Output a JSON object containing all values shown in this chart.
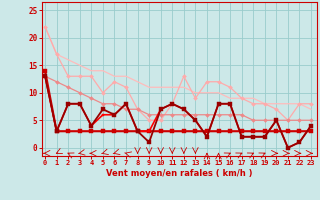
{
  "title": "",
  "xlabel": "Vent moyen/en rafales ( km/h )",
  "ylabel": "",
  "bg_color": "#cce8e8",
  "grid_color": "#99cccc",
  "x_ticks": [
    0,
    1,
    2,
    3,
    4,
    5,
    6,
    7,
    8,
    9,
    10,
    11,
    12,
    13,
    14,
    15,
    16,
    17,
    18,
    19,
    20,
    21,
    22,
    23
  ],
  "y_ticks": [
    0,
    5,
    10,
    15,
    20,
    25
  ],
  "xlim": [
    -0.3,
    23.5
  ],
  "ylim": [
    -1.5,
    26.5
  ],
  "lines": [
    {
      "x": [
        0,
        1,
        2,
        3,
        4,
        5,
        6,
        7,
        8,
        9,
        10,
        11,
        12,
        13,
        14,
        15,
        16,
        17,
        18,
        19,
        20,
        21,
        22,
        23
      ],
      "y": [
        22,
        17,
        16,
        15,
        14,
        14,
        13,
        13,
        12,
        11,
        11,
        11,
        11,
        10,
        10,
        10,
        9,
        9,
        9,
        8,
        8,
        8,
        8,
        7
      ],
      "color": "#ffbbbb",
      "lw": 0.9,
      "marker": null,
      "ms": 0
    },
    {
      "x": [
        0,
        1,
        2,
        3,
        4,
        5,
        6,
        7,
        8,
        9,
        10,
        11,
        12,
        13,
        14,
        15,
        16,
        17,
        18,
        19,
        20,
        21,
        22,
        23
      ],
      "y": [
        22,
        17,
        13,
        13,
        13,
        10,
        12,
        11,
        7,
        5,
        5,
        8,
        13,
        9,
        12,
        12,
        11,
        9,
        8,
        8,
        7,
        5,
        8,
        8
      ],
      "color": "#ffaaaa",
      "lw": 0.9,
      "marker": "D",
      "ms": 2.0
    },
    {
      "x": [
        0,
        1,
        2,
        3,
        4,
        5,
        6,
        7,
        8,
        9,
        10,
        11,
        12,
        13,
        14,
        15,
        16,
        17,
        18,
        19,
        20,
        21,
        22,
        23
      ],
      "y": [
        13,
        12,
        11,
        10,
        9,
        8,
        8,
        7,
        7,
        6,
        6,
        6,
        6,
        6,
        6,
        6,
        6,
        6,
        5,
        5,
        5,
        5,
        5,
        5
      ],
      "color": "#ee8888",
      "lw": 0.9,
      "marker": "D",
      "ms": 2.0
    },
    {
      "x": [
        0,
        1,
        2,
        3,
        4,
        5,
        6,
        7,
        8,
        9,
        10,
        11,
        12,
        13,
        14,
        15,
        16,
        17,
        18,
        19,
        20,
        21,
        22,
        23
      ],
      "y": [
        13,
        3,
        3,
        3,
        3,
        3,
        3,
        3,
        3,
        3,
        3,
        3,
        3,
        3,
        3,
        3,
        3,
        3,
        3,
        3,
        3,
        3,
        3,
        3
      ],
      "color": "#dd6666",
      "lw": 1.0,
      "marker": "s",
      "ms": 2.0
    },
    {
      "x": [
        0,
        1,
        2,
        3,
        4,
        5,
        6,
        7,
        8,
        9,
        10,
        11,
        12,
        13,
        14,
        15,
        16,
        17,
        18,
        19,
        20,
        21,
        22,
        23
      ],
      "y": [
        14,
        3,
        3,
        3,
        3,
        3,
        3,
        3,
        3,
        3,
        3,
        3,
        3,
        3,
        3,
        3,
        3,
        3,
        3,
        3,
        3,
        3,
        3,
        3
      ],
      "color": "#cc0000",
      "lw": 1.5,
      "marker": "s",
      "ms": 2.5
    },
    {
      "x": [
        0,
        1,
        2,
        3,
        4,
        5,
        6,
        7,
        8,
        9,
        10,
        11,
        12,
        13,
        14,
        15,
        16,
        17,
        18,
        19,
        20,
        21,
        22,
        23
      ],
      "y": [
        13,
        3,
        8,
        8,
        4,
        6,
        6,
        8,
        3,
        3,
        7,
        8,
        7,
        5,
        2,
        8,
        8,
        2,
        2,
        2,
        5,
        0,
        1,
        4
      ],
      "color": "#ff0000",
      "lw": 1.2,
      "marker": "s",
      "ms": 2.0
    },
    {
      "x": [
        0,
        1,
        2,
        3,
        4,
        5,
        6,
        7,
        8,
        9,
        10,
        11,
        12,
        13,
        14,
        15,
        16,
        17,
        18,
        19,
        20,
        21,
        22,
        23
      ],
      "y": [
        13,
        3,
        8,
        8,
        4,
        7,
        6,
        8,
        3,
        1,
        7,
        8,
        7,
        5,
        2,
        8,
        8,
        2,
        2,
        2,
        5,
        0,
        1,
        4
      ],
      "color": "#990000",
      "lw": 1.3,
      "marker": "s",
      "ms": 2.2
    }
  ],
  "axis_color": "#cc0000",
  "tick_color": "#cc0000",
  "label_color": "#cc0000",
  "wind_symbols": [
    {
      "x": 0,
      "sym": "←",
      "rot": 180
    },
    {
      "x": 1,
      "sym": "↖",
      "rot": 225
    },
    {
      "x": 2,
      "sym": "↗",
      "rot": 135
    },
    {
      "x": 3,
      "sym": "↙",
      "rot": 200
    },
    {
      "x": 4,
      "sym": "←",
      "rot": 180
    },
    {
      "x": 5,
      "sym": "↙",
      "rot": 210
    },
    {
      "x": 6,
      "sym": "↙",
      "rot": 210
    },
    {
      "x": 7,
      "sym": "↖",
      "rot": 150
    },
    {
      "x": 8,
      "sym": "↓",
      "rot": 270
    },
    {
      "x": 9,
      "sym": "↓",
      "rot": 270
    },
    {
      "x": 10,
      "sym": "↓",
      "rot": 270
    },
    {
      "x": 11,
      "sym": "↓",
      "rot": 270
    },
    {
      "x": 12,
      "sym": "↓",
      "rot": 270
    },
    {
      "x": 13,
      "sym": "↓",
      "rot": 270
    },
    {
      "x": 14,
      "sym": "↑",
      "rot": 90
    },
    {
      "x": 15,
      "sym": "↑",
      "rot": 90
    },
    {
      "x": 16,
      "sym": "↗",
      "rot": 45
    },
    {
      "x": 17,
      "sym": "↗",
      "rot": 45
    },
    {
      "x": 18,
      "sym": "↗",
      "rot": 45
    },
    {
      "x": 19,
      "sym": "↗",
      "rot": 45
    },
    {
      "x": 20,
      "sym": "→",
      "rot": 0
    },
    {
      "x": 21,
      "sym": "→",
      "rot": 0
    },
    {
      "x": 22,
      "sym": "→",
      "rot": 0
    },
    {
      "x": 23,
      "sym": "→",
      "rot": 0
    }
  ]
}
